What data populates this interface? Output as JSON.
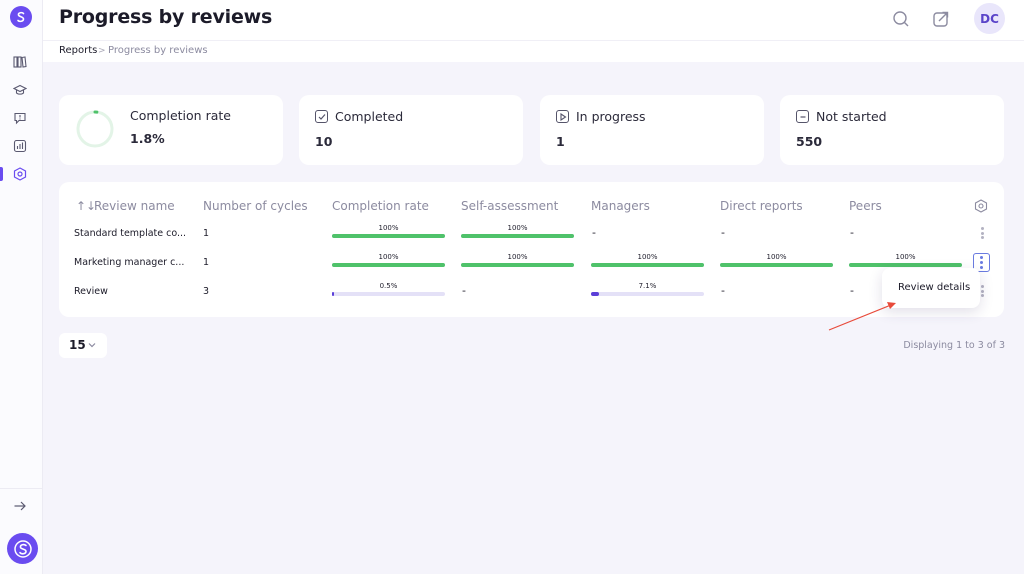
{
  "header": {
    "title": "Progress by reviews",
    "avatar_initials": "DC"
  },
  "breadcrumb": {
    "root": "Reports",
    "separator": ">",
    "current": "Progress by reviews"
  },
  "summary": {
    "completion_rate": {
      "label": "Completion rate",
      "value": "1.8%",
      "fraction": 0.018
    },
    "completed": {
      "label": "Completed",
      "value": "10"
    },
    "in_progress": {
      "label": "In progress",
      "value": "1"
    },
    "not_started": {
      "label": "Not started",
      "value": "550"
    }
  },
  "table": {
    "sort_icon": "↑↓",
    "columns": [
      "Review name",
      "Number of cycles",
      "Completion rate",
      "Self-assessment",
      "Managers",
      "Direct reports",
      "Peers"
    ],
    "rows": [
      {
        "name": "Standard template co...",
        "cycles": "1",
        "completion": {
          "label": "100%",
          "value": 100
        },
        "self": {
          "label": "100%",
          "value": 100
        },
        "managers": "-",
        "direct": "-",
        "peers": "-"
      },
      {
        "name": "Marketing manager c...",
        "cycles": "1",
        "completion": {
          "label": "100%",
          "value": 100
        },
        "self": {
          "label": "100%",
          "value": 100
        },
        "managers": {
          "label": "100%",
          "value": 100
        },
        "direct": {
          "label": "100%",
          "value": 100
        },
        "peers": {
          "label": "100%",
          "value": 100
        }
      },
      {
        "name": "Review",
        "cycles": "3",
        "completion": {
          "label": "0.5%",
          "value": 0.5
        },
        "self": "-",
        "managers": {
          "label": "7.1%",
          "value": 7.1
        },
        "direct": "-",
        "peers": "-"
      }
    ]
  },
  "row_menu": {
    "review_details": "Review details"
  },
  "pagination": {
    "page_size": "15",
    "displaying": "Displaying 1 to 3 of 3"
  },
  "colors": {
    "accent": "#6a4cf0",
    "success": "#4fc26a",
    "partial": "#5b3fd8",
    "track": "#e4e1f7",
    "annotation": "#e84a3a"
  }
}
